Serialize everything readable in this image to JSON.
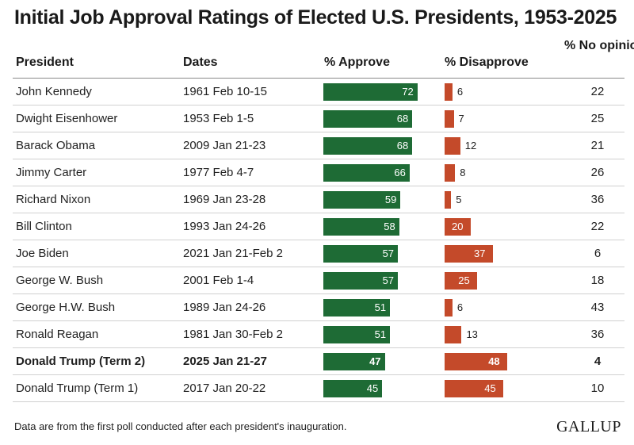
{
  "chart_data": {
    "type": "table",
    "title": "Initial Job Approval Ratings of Elected U.S. Presidents, 1953-2025",
    "columns": {
      "president": "President",
      "dates": "Dates",
      "approve": "% Approve",
      "disapprove": "% Disapprove",
      "no_opinion": "% No opinion"
    },
    "rows": [
      {
        "president": "John Kennedy",
        "dates": "1961 Feb 10-15",
        "approve": 72,
        "disapprove": 6,
        "no_opinion": 22,
        "highlight": false
      },
      {
        "president": "Dwight Eisenhower",
        "dates": "1953 Feb 1-5",
        "approve": 68,
        "disapprove": 7,
        "no_opinion": 25,
        "highlight": false
      },
      {
        "president": "Barack Obama",
        "dates": "2009 Jan 21-23",
        "approve": 68,
        "disapprove": 12,
        "no_opinion": 21,
        "highlight": false
      },
      {
        "president": "Jimmy Carter",
        "dates": "1977 Feb 4-7",
        "approve": 66,
        "disapprove": 8,
        "no_opinion": 26,
        "highlight": false
      },
      {
        "president": "Richard Nixon",
        "dates": "1969 Jan 23-28",
        "approve": 59,
        "disapprove": 5,
        "no_opinion": 36,
        "highlight": false
      },
      {
        "president": "Bill Clinton",
        "dates": "1993 Jan 24-26",
        "approve": 58,
        "disapprove": 20,
        "no_opinion": 22,
        "highlight": false
      },
      {
        "president": "Joe Biden",
        "dates": "2021 Jan 21-Feb 2",
        "approve": 57,
        "disapprove": 37,
        "no_opinion": 6,
        "highlight": false
      },
      {
        "president": "George W. Bush",
        "dates": "2001 Feb 1-4",
        "approve": 57,
        "disapprove": 25,
        "no_opinion": 18,
        "highlight": false
      },
      {
        "president": "George H.W. Bush",
        "dates": "1989 Jan 24-26",
        "approve": 51,
        "disapprove": 6,
        "no_opinion": 43,
        "highlight": false
      },
      {
        "president": "Ronald Reagan",
        "dates": "1981 Jan 30-Feb 2",
        "approve": 51,
        "disapprove": 13,
        "no_opinion": 36,
        "highlight": false
      },
      {
        "president": "Donald Trump (Term 2)",
        "dates": "2025 Jan 21-27",
        "approve": 47,
        "disapprove": 48,
        "no_opinion": 4,
        "highlight": true
      },
      {
        "president": "Donald Trump (Term 1)",
        "dates": "2017 Jan 20-22",
        "approve": 45,
        "disapprove": 45,
        "no_opinion": 10,
        "highlight": false
      }
    ],
    "colors": {
      "approve": "#1e6b35",
      "disapprove": "#c44a2a"
    }
  },
  "footnote": "Data are from the first poll conducted after each president's inauguration.",
  "source": "GALLUP"
}
